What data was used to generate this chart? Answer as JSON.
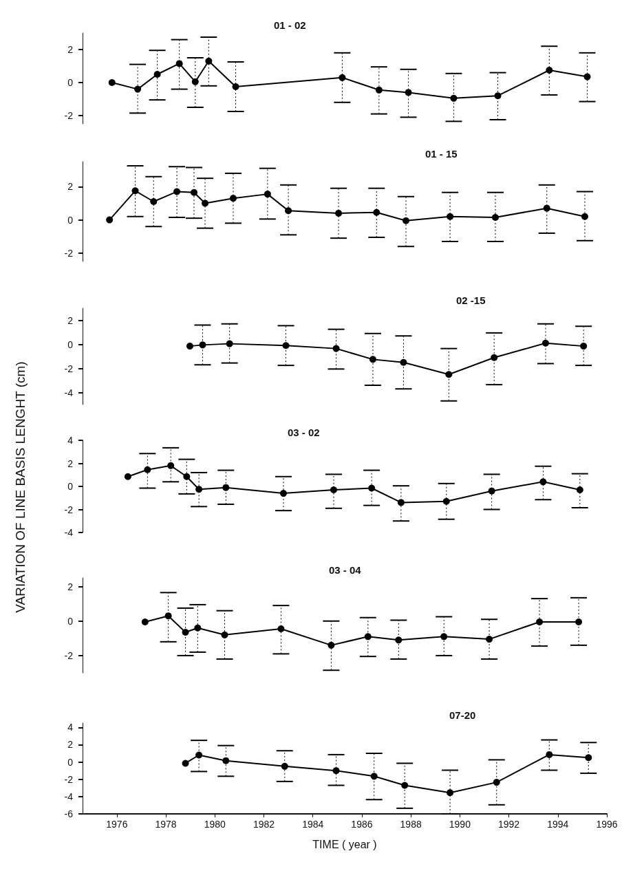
{
  "chart_data": [
    {
      "type": "line",
      "title": "01 - 02",
      "x": [
        1975.8,
        1976.85,
        1977.65,
        1978.55,
        1979.2,
        1979.75,
        1980.85,
        1985.2,
        1986.7,
        1987.9,
        1989.75,
        1991.55,
        1993.65,
        1995.2
      ],
      "series": [
        {
          "color": "#000000",
          "values": [
            0,
            -0.4,
            0.5,
            1.15,
            0.05,
            1.3,
            -0.25,
            0.3,
            -0.45,
            -0.6,
            -0.95,
            -0.8,
            0.75,
            0.35
          ],
          "errors": [
            null,
            [
              -1.85,
              1.1
            ],
            [
              -1.05,
              1.95
            ],
            [
              -0.4,
              2.6
            ],
            [
              -1.5,
              1.5
            ],
            [
              -0.2,
              2.75
            ],
            [
              -1.75,
              1.25
            ],
            [
              -1.2,
              1.8
            ],
            [
              -1.9,
              0.95
            ],
            [
              -2.1,
              0.8
            ],
            [
              -2.35,
              0.55
            ],
            [
              -2.25,
              0.6
            ],
            [
              -0.75,
              2.2
            ],
            [
              -1.15,
              1.8
            ]
          ]
        }
      ],
      "xlim": [
        1974.6,
        1996
      ],
      "ylim": [
        -2.5,
        3
      ],
      "yticks": [
        -2,
        0,
        2
      ],
      "tick_labels": "y",
      "grid": false,
      "marker": "circle"
    },
    {
      "type": "line",
      "title": "01 - 15",
      "x": [
        1975.7,
        1976.75,
        1977.5,
        1978.45,
        1979.15,
        1979.6,
        1980.75,
        1982.15,
        1983.0,
        1985.05,
        1986.6,
        1987.8,
        1989.6,
        1991.45,
        1993.55,
        1995.1
      ],
      "series": [
        {
          "color": "#000000",
          "values": [
            0,
            1.75,
            1.1,
            1.7,
            1.65,
            1.0,
            1.3,
            1.55,
            0.55,
            0.4,
            0.45,
            -0.05,
            0.2,
            0.15,
            0.7,
            0.2
          ],
          "errors": [
            null,
            [
              0.2,
              3.25
            ],
            [
              -0.4,
              2.6
            ],
            [
              0.15,
              3.2
            ],
            [
              0.1,
              3.15
            ],
            [
              -0.5,
              2.5
            ],
            [
              -0.2,
              2.8
            ],
            [
              0.05,
              3.1
            ],
            [
              -0.9,
              2.1
            ],
            [
              -1.1,
              1.9
            ],
            [
              -1.05,
              1.9
            ],
            [
              -1.6,
              1.4
            ],
            [
              -1.3,
              1.65
            ],
            [
              -1.3,
              1.65
            ],
            [
              -0.8,
              2.1
            ],
            [
              -1.25,
              1.7
            ]
          ]
        }
      ],
      "xlim": [
        1974.6,
        1996
      ],
      "ylim": [
        -2.5,
        3.5
      ],
      "yticks": [
        -2,
        0,
        2
      ],
      "tick_labels": "y",
      "grid": false,
      "marker": "circle"
    },
    {
      "type": "line",
      "title": "02 -15",
      "ylabel": "VARIATION OF LINE BASIS LENGHT (cm)",
      "x": [
        1978.98,
        1979.5,
        1980.6,
        1982.9,
        1984.95,
        1986.45,
        1987.7,
        1989.55,
        1991.4,
        1993.5,
        1995.05
      ],
      "series": [
        {
          "color": "#000000",
          "values": [
            -0.15,
            -0.05,
            0.05,
            -0.1,
            -0.35,
            -1.25,
            -1.5,
            -2.5,
            -1.1,
            0.1,
            -0.15
          ],
          "errors": [
            null,
            [
              -1.7,
              1.6
            ],
            [
              -1.55,
              1.7
            ],
            [
              -1.75,
              1.55
            ],
            [
              -2.05,
              1.25
            ],
            [
              -3.4,
              0.9
            ],
            [
              -3.7,
              0.7
            ],
            [
              -4.7,
              -0.35
            ],
            [
              -3.35,
              0.95
            ],
            [
              -1.6,
              1.7
            ],
            [
              -1.75,
              1.5
            ]
          ]
        }
      ],
      "xlim": [
        1974.6,
        1996
      ],
      "ylim": [
        -5,
        3
      ],
      "yticks": [
        -4,
        -2,
        0,
        2
      ],
      "tick_labels": "y",
      "grid": false,
      "marker": "circle"
    },
    {
      "type": "line",
      "title": "03 - 02",
      "x": [
        1976.45,
        1977.25,
        1978.2,
        1978.85,
        1979.35,
        1980.45,
        1982.8,
        1984.85,
        1986.4,
        1987.6,
        1989.45,
        1991.3,
        1993.4,
        1994.9
      ],
      "series": [
        {
          "color": "#000000",
          "values": [
            0.85,
            1.45,
            1.8,
            0.85,
            -0.25,
            -0.1,
            -0.6,
            -0.3,
            -0.15,
            -1.4,
            -1.3,
            -0.4,
            0.4,
            -0.3
          ],
          "errors": [
            null,
            [
              -0.15,
              2.85
            ],
            [
              0.4,
              3.35
            ],
            [
              -0.65,
              2.35
            ],
            [
              -1.75,
              1.2
            ],
            [
              -1.55,
              1.4
            ],
            [
              -2.1,
              0.85
            ],
            [
              -1.9,
              1.05
            ],
            [
              -1.65,
              1.4
            ],
            [
              -3.0,
              0.05
            ],
            [
              -2.85,
              0.25
            ],
            [
              -2.0,
              1.05
            ],
            [
              -1.15,
              1.75
            ],
            [
              -1.85,
              1.1
            ]
          ]
        }
      ],
      "xlim": [
        1974.6,
        1996
      ],
      "ylim": [
        -4,
        4
      ],
      "yticks": [
        -4,
        -2,
        0,
        2,
        4
      ],
      "tick_labels": "y",
      "grid": false,
      "marker": "circle"
    },
    {
      "type": "line",
      "title": "03 - 04",
      "x": [
        1977.15,
        1978.1,
        1978.8,
        1979.3,
        1980.4,
        1982.7,
        1984.75,
        1986.25,
        1987.5,
        1989.35,
        1991.2,
        1993.25,
        1994.85
      ],
      "series": [
        {
          "color": "#000000",
          "values": [
            -0.05,
            0.3,
            -0.65,
            -0.4,
            -0.8,
            -0.45,
            -1.4,
            -0.9,
            -1.1,
            -0.9,
            -1.05,
            -0.05,
            -0.05
          ],
          "errors": [
            null,
            [
              -1.2,
              1.65
            ],
            [
              -2.0,
              0.75
            ],
            [
              -1.8,
              0.95
            ],
            [
              -2.2,
              0.6
            ],
            [
              -1.9,
              0.9
            ],
            [
              -2.85,
              0.0
            ],
            [
              -2.05,
              0.2
            ],
            [
              -2.2,
              0.05
            ],
            [
              -2.0,
              0.25
            ],
            [
              -2.2,
              0.1
            ],
            [
              -1.45,
              1.3
            ],
            [
              -1.4,
              1.35
            ]
          ]
        }
      ],
      "xlim": [
        1974.6,
        1996
      ],
      "ylim": [
        -3,
        2.5
      ],
      "yticks": [
        -2,
        0,
        2
      ],
      "tick_labels": "y",
      "grid": false,
      "marker": "circle"
    },
    {
      "type": "line",
      "title": "07-20",
      "xlabel": "TIME ( year )",
      "x": [
        1978.8,
        1979.35,
        1980.45,
        1982.85,
        1984.95,
        1986.5,
        1987.75,
        1989.6,
        1991.5,
        1993.65,
        1995.25
      ],
      "series": [
        {
          "color": "#000000",
          "values": [
            -0.15,
            0.8,
            0.15,
            -0.5,
            -1.0,
            -1.65,
            -2.7,
            -3.55,
            -2.35,
            0.85,
            0.5
          ],
          "errors": [
            null,
            [
              -1.1,
              2.5
            ],
            [
              -1.65,
              1.9
            ],
            [
              -2.25,
              1.3
            ],
            [
              -2.7,
              0.85
            ],
            [
              -4.35,
              1.0
            ],
            [
              -5.35,
              -0.15
            ],
            [
              -6.0,
              -0.95
            ],
            [
              -4.95,
              0.25
            ],
            [
              -0.95,
              2.55
            ],
            [
              -1.3,
              2.25
            ]
          ]
        }
      ],
      "xlim": [
        1974.6,
        1996
      ],
      "xticks": [
        1976,
        1978,
        1980,
        1982,
        1984,
        1986,
        1988,
        1990,
        1992,
        1994,
        1996
      ],
      "ylim": [
        -6,
        4.5
      ],
      "yticks": [
        -6,
        -4,
        -2,
        0,
        2,
        4
      ],
      "grid": false,
      "marker": "circle"
    }
  ]
}
